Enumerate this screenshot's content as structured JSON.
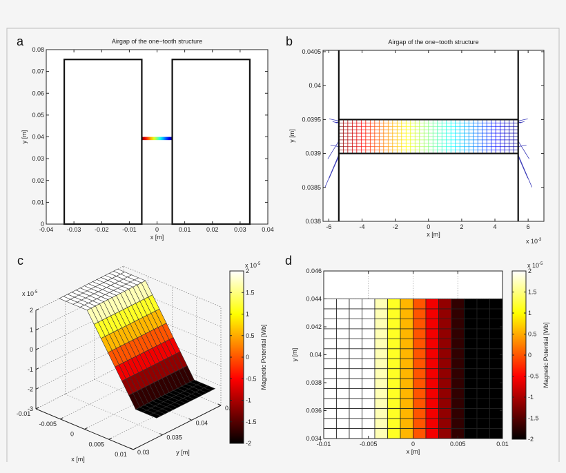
{
  "figure": {
    "background": "#f5f5f5",
    "frame_color": "#bdbdbd"
  },
  "chart_data": [
    {
      "panel_label": "a",
      "type": "line",
      "title": "Airgap of the one−tooth structure",
      "xlabel": "x [m]",
      "ylabel": "y [m]",
      "xlim": [
        -0.04,
        0.04
      ],
      "ylim": [
        0,
        0.08
      ],
      "xticks": [
        "-0.04",
        "-0.03",
        "-0.02",
        "-0.01",
        "0",
        "0.01",
        "0.02",
        "0.03",
        "0.04"
      ],
      "yticks": [
        "0",
        "0.01",
        "0.02",
        "0.03",
        "0.04",
        "0.05",
        "0.06",
        "0.07",
        "0.08"
      ],
      "teeth": [
        {
          "x": [
            -0.0335,
            -0.0055
          ],
          "y": [
            0,
            0.0755
          ]
        },
        {
          "x": [
            0.0055,
            0.0335
          ],
          "y": [
            0,
            0.0755
          ]
        }
      ],
      "airgap": {
        "x": [
          -0.0055,
          0.0055
        ],
        "y": [
          0.039,
          0.0395
        ],
        "colormap": "jet"
      }
    },
    {
      "panel_label": "b",
      "type": "line",
      "title": "Airgap of the one−tooth structure",
      "xlabel": "x [m]",
      "ylabel": "y [m]",
      "x_multiplier": "x 10",
      "x_multiplier_exp": "-3",
      "xlim": [
        -6.35,
        6.95
      ],
      "ylim": [
        0.038,
        0.04052
      ],
      "xticks": [
        "-6",
        "-4",
        "-2",
        "0",
        "2",
        "4",
        "6"
      ],
      "yticks": [
        "0.038",
        "0.0385",
        "0.039",
        "0.0395",
        "0.04",
        "0.0405"
      ],
      "tooth_edges_x": [
        -5.4,
        5.4
      ],
      "airgap": {
        "x": [
          -5.4,
          5.4
        ],
        "y": [
          0.039,
          0.0395
        ]
      },
      "mesh": {
        "columns": 40,
        "rows": 10,
        "colormap": "jet",
        "fringe_color": "#3a3ab8"
      }
    },
    {
      "panel_label": "c",
      "type": "surface",
      "xlabel": "x [m]",
      "ylabel": "y [m]",
      "z_multiplier": "x 10",
      "z_multiplier_exp": "-5",
      "xlim": [
        -0.01,
        0.01
      ],
      "ylim": [
        0.03,
        0.045
      ],
      "zlim": [
        -3,
        2
      ],
      "grid": true,
      "xticks": [
        "-0.01",
        "-0.005",
        "0",
        "0.005",
        "0.01"
      ],
      "yticks": [
        "0.03",
        "0.035",
        "0.04",
        "0.045"
      ],
      "zticks": [
        "-3",
        "-2",
        "-1",
        "0",
        "1",
        "2"
      ],
      "x_range": [
        -0.01,
        0.01
      ],
      "y_range": [
        0.034,
        0.044
      ],
      "y_node_count": 15,
      "z_by_x_node": [
        2,
        2,
        2,
        2,
        2,
        1.43,
        0.86,
        0.29,
        -0.29,
        -0.86,
        -1.43,
        -2,
        -2,
        -2,
        -2
      ],
      "colormap": "hot",
      "colorbar": {
        "label": "Magnetic Potential [Wb]",
        "multiplier": "x 10",
        "exp": "-5",
        "limits": [
          -2,
          2
        ],
        "ticks": [
          "-2",
          "-1.5",
          "-1",
          "-0.5",
          "0",
          "0.5",
          "1",
          "1.5",
          "2"
        ]
      }
    },
    {
      "panel_label": "d",
      "type": "heatmap",
      "xlabel": "x [m]",
      "ylabel": "y [m]",
      "xlim": [
        -0.01,
        0.01
      ],
      "ylim": [
        0.034,
        0.046
      ],
      "grid": true,
      "xticks": [
        "-0.01",
        "-0.005",
        "0",
        "0.005",
        "0.01"
      ],
      "yticks": [
        "0.034",
        "0.036",
        "0.038",
        "0.04",
        "0.042",
        "0.044",
        "0.046"
      ],
      "cells": {
        "x_range": [
          -0.01,
          0.01
        ],
        "y_range": [
          0.034,
          0.044
        ],
        "columns": 14,
        "rows": 14,
        "column_values": [
          2,
          2,
          2,
          2,
          1.71,
          1.14,
          0.57,
          0,
          -0.57,
          -1.14,
          -1.71,
          -2,
          -2,
          -2
        ]
      },
      "colormap": "hot",
      "colorbar": {
        "label": "Magnetic Potential [Wb]",
        "multiplier": "x 10",
        "exp": "-5",
        "limits": [
          -2,
          2
        ],
        "ticks": [
          "-2",
          "-1.5",
          "-1",
          "-0.5",
          "0",
          "0.5",
          "1",
          "1.5",
          "2"
        ]
      }
    }
  ]
}
